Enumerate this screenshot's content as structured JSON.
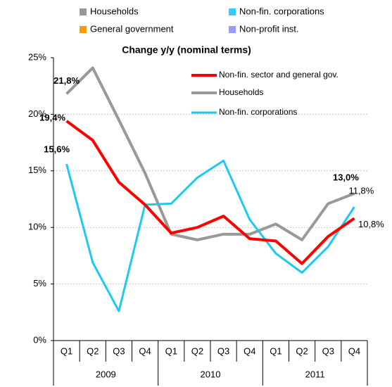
{
  "chart_data": {
    "type": "line",
    "title": "Change y/y (nominal terms)",
    "top_legend": [
      {
        "name": "Households",
        "color": "#999999"
      },
      {
        "name": "Non-fin. corporations",
        "color": "#33ccff"
      },
      {
        "name": "General government",
        "color": "#ff9900"
      },
      {
        "name": "Non-profit inst.",
        "color": "#9999ff"
      }
    ],
    "categories": [
      "Q1",
      "Q2",
      "Q3",
      "Q4",
      "Q1",
      "Q2",
      "Q3",
      "Q4",
      "Q1",
      "Q2",
      "Q3",
      "Q4"
    ],
    "category_groups": [
      "2009",
      "2010",
      "2011"
    ],
    "series": [
      {
        "name": "Non-fin. sector and general gov.",
        "color": "#ff0000",
        "values": [
          19.4,
          17.7,
          14.0,
          12.0,
          9.5,
          10.0,
          11.0,
          9.0,
          8.8,
          6.8,
          9.2,
          10.8
        ],
        "value_labels": [
          "19,4%",
          null,
          null,
          null,
          null,
          null,
          null,
          null,
          null,
          null,
          null,
          "10,8%"
        ]
      },
      {
        "name": "Households",
        "color": "#999999",
        "values": [
          21.8,
          24.1,
          19.5,
          14.8,
          9.4,
          8.9,
          9.4,
          9.4,
          10.3,
          8.9,
          12.1,
          13.0
        ],
        "value_labels": [
          "21,8%",
          null,
          null,
          null,
          null,
          null,
          null,
          null,
          null,
          null,
          null,
          "13,0%"
        ]
      },
      {
        "name": "Non-fin. corporations",
        "color": "#1ec8f0",
        "values": [
          15.6,
          6.9,
          2.6,
          12.0,
          12.1,
          14.4,
          15.9,
          10.7,
          7.7,
          6.0,
          8.3,
          11.8
        ],
        "value_labels": [
          "15,6%",
          null,
          null,
          null,
          null,
          null,
          null,
          null,
          null,
          null,
          null,
          "11,8%"
        ]
      }
    ],
    "ylim": [
      0,
      25
    ],
    "yticks": [
      {
        "value": 0,
        "label": "0%"
      },
      {
        "value": 5,
        "label": "5%"
      },
      {
        "value": 10,
        "label": "10%"
      },
      {
        "value": 15,
        "label": "15%"
      },
      {
        "value": 20,
        "label": "20%"
      },
      {
        "value": 25,
        "label": "25%"
      }
    ],
    "grid": true
  }
}
